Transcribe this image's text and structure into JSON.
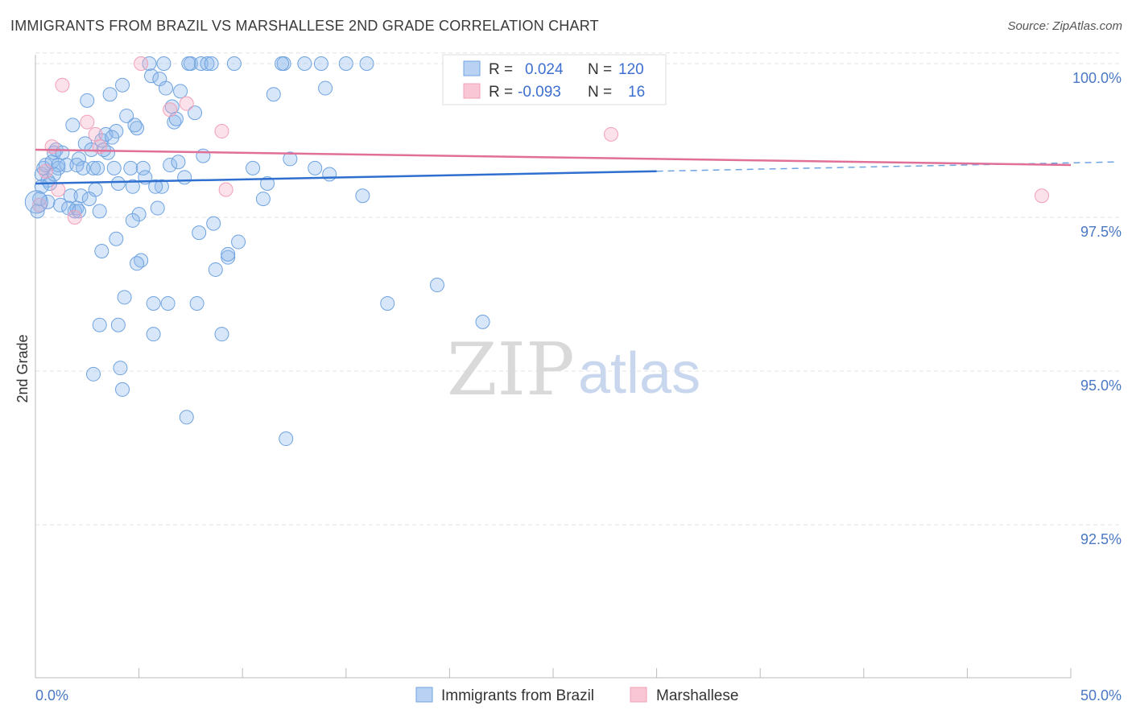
{
  "title": "IMMIGRANTS FROM BRAZIL VS MARSHALLESE 2ND GRADE CORRELATION CHART",
  "source": "Source: ZipAtlas.com",
  "watermark": {
    "zip": "ZIP",
    "atlas": "atlas"
  },
  "colors": {
    "blue": "#6fa3e0",
    "blue_line": "#2f6fcf",
    "pink": "#f2a0b8",
    "pink_line": "#e07098",
    "tick": "#4a78c4"
  },
  "legend": {
    "series": [
      {
        "r_label": "R =",
        "r_value": "0.024",
        "n_label": "N =",
        "n_value": "120"
      },
      {
        "r_label": "R =",
        "r_value": "-0.093",
        "n_label": "N =",
        "n_value": "16"
      }
    ]
  },
  "chart_data": {
    "type": "scatter",
    "title": "IMMIGRANTS FROM BRAZIL VS MARSHALLESE 2ND GRADE CORRELATION CHART",
    "xlabel": "",
    "ylabel": "2nd Grade",
    "xlim": [
      0,
      50
    ],
    "ylim": [
      90.0,
      100.2
    ],
    "x_tick_labels": [
      "0.0%",
      "50.0%"
    ],
    "y_ticks": [
      92.5,
      95.0,
      97.5,
      100.0
    ],
    "y_tick_labels": [
      "92.5%",
      "95.0%",
      "97.5%",
      "100.0%"
    ],
    "grid": "horizontal dashed",
    "legend_position": "top-center",
    "series": [
      {
        "name": "Immigrants from Brazil",
        "color": "#6fa3e0",
        "trend": {
          "x": [
            0,
            30
          ],
          "y": [
            98.05,
            98.25
          ],
          "dashed_to": [
            50,
            98.4
          ]
        },
        "points": [
          [
            0.1,
            97.6
          ],
          [
            0.2,
            97.8
          ],
          [
            0.3,
            98.2
          ],
          [
            0.4,
            98.3
          ],
          [
            0.5,
            98.35
          ],
          [
            0.6,
            98.1
          ],
          [
            0.7,
            98.05
          ],
          [
            0.8,
            98.4
          ],
          [
            0.9,
            98.55
          ],
          [
            1.0,
            98.6
          ],
          [
            1.1,
            98.3
          ],
          [
            1.2,
            97.7
          ],
          [
            1.5,
            98.35
          ],
          [
            1.7,
            97.85
          ],
          [
            1.8,
            99.0
          ],
          [
            1.9,
            97.6
          ],
          [
            2.0,
            97.65
          ],
          [
            2.1,
            98.45
          ],
          [
            2.2,
            97.85
          ],
          [
            2.3,
            98.3
          ],
          [
            2.4,
            98.7
          ],
          [
            2.5,
            99.4
          ],
          [
            2.7,
            98.6
          ],
          [
            2.8,
            98.3
          ],
          [
            2.9,
            97.95
          ],
          [
            3.0,
            98.3
          ],
          [
            3.1,
            97.6
          ],
          [
            3.2,
            98.75
          ],
          [
            3.4,
            98.85
          ],
          [
            3.5,
            98.55
          ],
          [
            3.6,
            99.5
          ],
          [
            3.8,
            98.3
          ],
          [
            3.9,
            98.9
          ],
          [
            4.0,
            98.05
          ],
          [
            4.2,
            99.65
          ],
          [
            4.4,
            99.15
          ],
          [
            4.6,
            98.3
          ],
          [
            4.7,
            98.0
          ],
          [
            4.9,
            98.95
          ],
          [
            5.0,
            97.55
          ],
          [
            5.2,
            98.3
          ],
          [
            5.3,
            98.15
          ],
          [
            5.5,
            100.0
          ],
          [
            5.6,
            99.8
          ],
          [
            5.9,
            97.65
          ],
          [
            6.0,
            99.75
          ],
          [
            6.1,
            98.0
          ],
          [
            6.3,
            99.6
          ],
          [
            6.5,
            98.35
          ],
          [
            6.6,
            99.3
          ],
          [
            6.7,
            99.05
          ],
          [
            6.9,
            98.4
          ],
          [
            7.0,
            99.55
          ],
          [
            7.2,
            98.15
          ],
          [
            7.5,
            100.0
          ],
          [
            7.7,
            99.2
          ],
          [
            8.0,
            100.0
          ],
          [
            8.1,
            98.5
          ],
          [
            8.3,
            100.0
          ],
          [
            8.6,
            97.4
          ],
          [
            9.3,
            96.85
          ],
          [
            9.8,
            97.1
          ],
          [
            10.5,
            98.3
          ],
          [
            11.0,
            97.8
          ],
          [
            11.5,
            99.5
          ],
          [
            12.0,
            100.0
          ],
          [
            12.3,
            98.45
          ],
          [
            13.0,
            100.0
          ],
          [
            13.5,
            98.3
          ],
          [
            14.0,
            99.6
          ],
          [
            15.0,
            100.0
          ],
          [
            15.8,
            97.85
          ],
          [
            17.0,
            96.1
          ],
          [
            19.4,
            96.4
          ],
          [
            21.6,
            95.8
          ],
          [
            3.2,
            96.95
          ],
          [
            4.0,
            95.75
          ],
          [
            4.3,
            96.2
          ],
          [
            5.1,
            96.8
          ],
          [
            5.7,
            96.1
          ],
          [
            6.4,
            96.1
          ],
          [
            7.8,
            96.1
          ],
          [
            8.7,
            96.65
          ],
          [
            9.0,
            95.6
          ],
          [
            3.1,
            95.75
          ],
          [
            5.7,
            95.6
          ],
          [
            2.8,
            94.95
          ],
          [
            4.1,
            95.05
          ],
          [
            4.2,
            94.7
          ],
          [
            7.3,
            94.25
          ],
          [
            12.1,
            93.9
          ],
          [
            3.9,
            97.15
          ],
          [
            4.9,
            96.75
          ],
          [
            4.7,
            97.45
          ],
          [
            9.3,
            96.9
          ],
          [
            7.9,
            97.25
          ],
          [
            11.2,
            98.05
          ],
          [
            14.2,
            98.2
          ],
          [
            0.3,
            98.0
          ],
          [
            0.6,
            97.75
          ],
          [
            1.3,
            98.55
          ],
          [
            2.0,
            98.35
          ],
          [
            2.6,
            97.8
          ],
          [
            3.3,
            98.6
          ],
          [
            4.8,
            99.0
          ],
          [
            6.2,
            100.0
          ],
          [
            7.4,
            100.0
          ],
          [
            8.5,
            100.0
          ],
          [
            9.6,
            100.0
          ],
          [
            11.9,
            100.0
          ],
          [
            13.8,
            100.0
          ],
          [
            16.0,
            100.0
          ],
          [
            27.0,
            100.0
          ],
          [
            1.1,
            98.35
          ],
          [
            1.6,
            97.65
          ],
          [
            2.1,
            97.6
          ],
          [
            5.8,
            98.0
          ],
          [
            0.9,
            98.2
          ],
          [
            3.7,
            98.8
          ],
          [
            6.8,
            99.1
          ]
        ]
      },
      {
        "name": "Marshallese",
        "color": "#f2a0b8",
        "trend": {
          "x": [
            0,
            50
          ],
          "y": [
            98.6,
            98.35
          ]
        },
        "points": [
          [
            0.2,
            97.7
          ],
          [
            0.5,
            98.25
          ],
          [
            0.8,
            98.65
          ],
          [
            1.1,
            97.95
          ],
          [
            1.3,
            99.65
          ],
          [
            1.9,
            97.5
          ],
          [
            2.5,
            99.05
          ],
          [
            2.9,
            98.85
          ],
          [
            3.1,
            98.65
          ],
          [
            5.1,
            100.0
          ],
          [
            6.5,
            99.25
          ],
          [
            7.3,
            99.35
          ],
          [
            9.0,
            98.9
          ],
          [
            9.2,
            97.95
          ],
          [
            27.8,
            98.85
          ],
          [
            48.6,
            97.85
          ]
        ]
      }
    ]
  },
  "bottom_legend": [
    {
      "label": "Immigrants from Brazil"
    },
    {
      "label": "Marshallese"
    }
  ]
}
